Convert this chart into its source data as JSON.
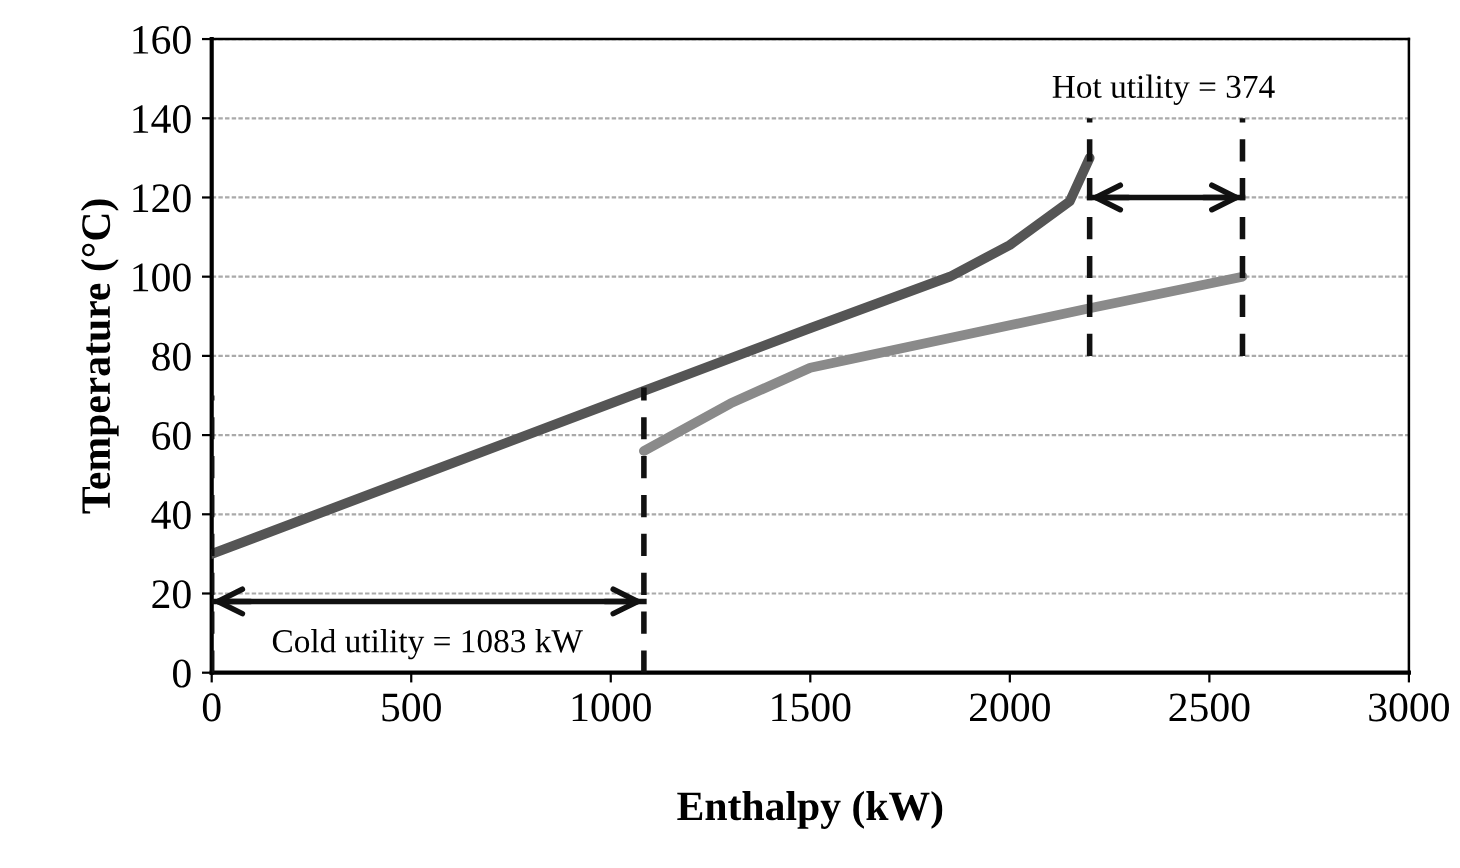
{
  "chart_data": {
    "type": "line",
    "xlabel": "Enthalpy (kW)",
    "ylabel": "Temperature (°C)",
    "xlim": [
      0,
      3000
    ],
    "ylim": [
      0,
      160
    ],
    "xticks": [
      0,
      500,
      1000,
      1500,
      2000,
      2500,
      3000
    ],
    "yticks": [
      0,
      20,
      40,
      60,
      80,
      100,
      120,
      140,
      160
    ],
    "grid": "y",
    "series": [
      {
        "color": "#555555",
        "x": [
          0,
          500,
          1000,
          1500,
          1850,
          2000,
          2150,
          2200
        ],
        "values": [
          30,
          49,
          68,
          87,
          100,
          108,
          119,
          130
        ]
      },
      {
        "color": "#8a8a8a",
        "x": [
          1083,
          1300,
          1500,
          2200,
          2583
        ],
        "values": [
          56,
          68,
          77,
          92,
          100
        ]
      },
      {
        "color": "#111111",
        "line_style": "dashed",
        "x": [
          0,
          0
        ],
        "values": [
          0,
          70
        ]
      },
      {
        "color": "#111111",
        "line_style": "dashed",
        "x": [
          1083,
          1083
        ],
        "values": [
          0,
          72
        ]
      },
      {
        "color": "#111111",
        "line_style": "dashed",
        "x": [
          2200,
          2200
        ],
        "values": [
          80,
          140
        ]
      },
      {
        "color": "#111111",
        "line_style": "dashed",
        "x": [
          2583,
          2583
        ],
        "values": [
          80,
          140
        ]
      },
      {
        "color": "#111111",
        "line_style": "solid",
        "x": [
          0,
          1083
        ],
        "values": [
          18,
          18
        ]
      },
      {
        "color": "#111111",
        "line_style": "solid",
        "x": [
          2200,
          2583
        ],
        "values": [
          120,
          120
        ]
      }
    ],
    "annotations": [
      "Cold utility = 1083 kW",
      "Hot utility = 374"
    ]
  }
}
